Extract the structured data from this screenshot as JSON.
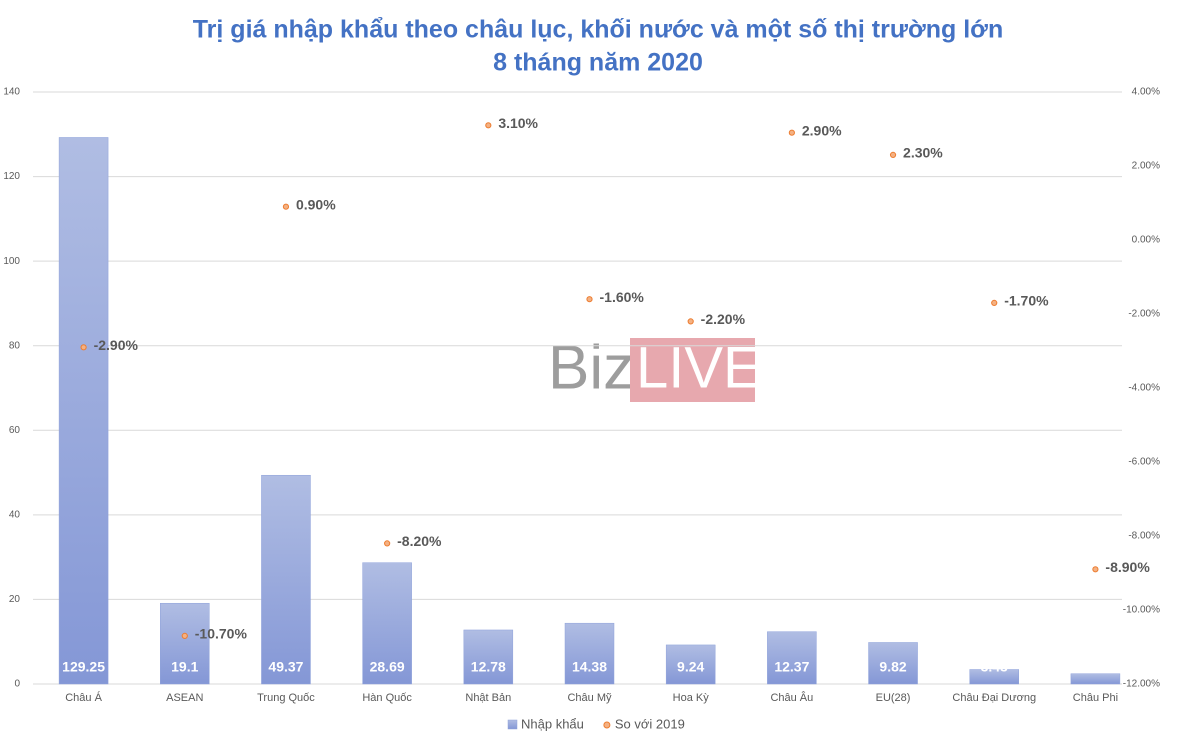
{
  "chart_data": {
    "type": "bar",
    "title": "Trị giá nhập khẩu theo châu lục, khối nước và một số thị trường lớn",
    "subtitle": "8 tháng năm 2020",
    "categories": [
      "Châu Á",
      "ASEAN",
      "Trung Quốc",
      "Hàn Quốc",
      "Nhật Bản",
      "Châu Mỹ",
      "Hoa Kỳ",
      "Châu Âu",
      "EU(28)",
      "Châu Đại Dương",
      "Châu Phi"
    ],
    "series": [
      {
        "name": "Nhập khẩu",
        "type": "bar",
        "color": "#8fa2da",
        "values": [
          129.25,
          19.1,
          49.37,
          28.69,
          12.78,
          14.38,
          9.24,
          12.37,
          9.82,
          3.43,
          2.43
        ]
      },
      {
        "name": "So với 2019",
        "type": "scatter",
        "axis": "y2",
        "color": "#ed7d31",
        "values": [
          -2.9,
          -10.7,
          0.9,
          -8.2,
          3.1,
          -1.6,
          -2.2,
          2.9,
          2.3,
          -1.7,
          -8.9
        ],
        "value_labels": [
          "-2.90%",
          "-10.70%",
          "0.90%",
          "-8.20%",
          "3.10%",
          "-1.60%",
          "-2.20%",
          "2.90%",
          "2.30%",
          "-1.70%",
          "-8.90%"
        ]
      }
    ],
    "ylim": [
      0,
      140
    ],
    "yticks": [
      0,
      20,
      40,
      60,
      80,
      100,
      120,
      140
    ],
    "y2lim": [
      -12,
      4
    ],
    "y2ticks": [
      {
        "value": 4,
        "label": "4.00%"
      },
      {
        "value": 2,
        "label": "2.00%"
      },
      {
        "value": 0,
        "label": "0.00%"
      },
      {
        "value": -2,
        "label": "-2.00%"
      },
      {
        "value": -4,
        "label": "-4.00%"
      },
      {
        "value": -6,
        "label": "-6.00%"
      },
      {
        "value": -8,
        "label": "-8.00%"
      },
      {
        "value": -10,
        "label": "-10.00%"
      },
      {
        "value": -12,
        "label": "-12.00%"
      }
    ],
    "grid": true,
    "legend": "bottom"
  },
  "watermark": {
    "left": "Biz",
    "right": "LIVE"
  }
}
